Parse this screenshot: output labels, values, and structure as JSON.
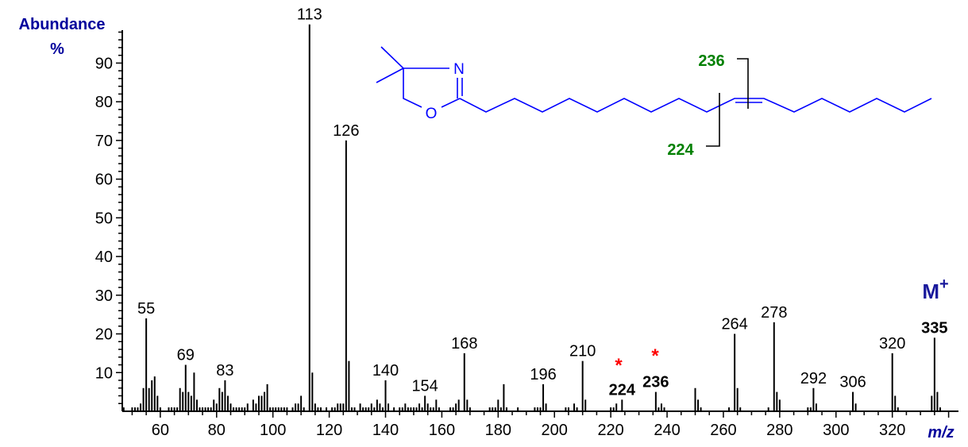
{
  "chart_data": {
    "type": "bar",
    "xlabel": "m/z",
    "ylabel": "Abundance",
    "ylabel_unit": "%",
    "xlim": [
      46.5,
      343.5
    ],
    "ylim": [
      0,
      98.5
    ],
    "x_tick_labels": [
      "60",
      "80",
      "100",
      "120",
      "140",
      "160",
      "180",
      "200",
      "220",
      "240",
      "260",
      "280",
      "300",
      "320"
    ],
    "y_tick_labels": [
      "10",
      "20",
      "30",
      "40",
      "50",
      "60",
      "70",
      "80",
      "90"
    ],
    "grid": false,
    "peaks": [
      [
        47,
        1
      ],
      [
        50,
        1
      ],
      [
        51,
        1
      ],
      [
        52,
        1
      ],
      [
        53,
        2
      ],
      [
        54,
        6
      ],
      [
        55,
        24
      ],
      [
        56,
        6
      ],
      [
        57,
        8
      ],
      [
        58,
        9
      ],
      [
        59,
        4
      ],
      [
        60,
        1
      ],
      [
        63,
        1
      ],
      [
        64,
        1
      ],
      [
        65,
        1
      ],
      [
        66,
        1
      ],
      [
        67,
        6
      ],
      [
        68,
        5
      ],
      [
        69,
        12
      ],
      [
        70,
        5
      ],
      [
        71,
        4
      ],
      [
        72,
        10
      ],
      [
        73,
        3
      ],
      [
        74,
        1
      ],
      [
        75,
        1
      ],
      [
        76,
        1
      ],
      [
        77,
        1
      ],
      [
        78,
        1
      ],
      [
        79,
        3
      ],
      [
        80,
        2
      ],
      [
        81,
        6
      ],
      [
        82,
        5
      ],
      [
        83,
        8
      ],
      [
        84,
        4
      ],
      [
        85,
        2
      ],
      [
        86,
        1
      ],
      [
        87,
        1
      ],
      [
        88,
        1
      ],
      [
        89,
        1
      ],
      [
        90,
        1
      ],
      [
        91,
        2
      ],
      [
        93,
        3
      ],
      [
        94,
        2
      ],
      [
        95,
        4
      ],
      [
        96,
        4
      ],
      [
        97,
        5
      ],
      [
        98,
        7
      ],
      [
        99,
        1
      ],
      [
        100,
        1
      ],
      [
        101,
        1
      ],
      [
        102,
        1
      ],
      [
        103,
        1
      ],
      [
        104,
        1
      ],
      [
        105,
        1
      ],
      [
        107,
        1
      ],
      [
        108,
        2
      ],
      [
        109,
        2
      ],
      [
        110,
        4
      ],
      [
        111,
        1
      ],
      [
        113,
        100
      ],
      [
        114,
        10
      ],
      [
        115,
        2
      ],
      [
        116,
        1
      ],
      [
        117,
        1
      ],
      [
        119,
        1
      ],
      [
        121,
        1
      ],
      [
        122,
        1
      ],
      [
        123,
        2
      ],
      [
        124,
        2
      ],
      [
        125,
        2
      ],
      [
        126,
        70
      ],
      [
        127,
        13
      ],
      [
        128,
        1
      ],
      [
        129,
        1
      ],
      [
        131,
        2
      ],
      [
        132,
        1
      ],
      [
        133,
        1
      ],
      [
        134,
        1
      ],
      [
        135,
        2
      ],
      [
        136,
        1
      ],
      [
        137,
        3
      ],
      [
        138,
        2
      ],
      [
        139,
        1
      ],
      [
        140,
        8
      ],
      [
        141,
        2
      ],
      [
        143,
        1
      ],
      [
        145,
        1
      ],
      [
        146,
        1
      ],
      [
        147,
        2
      ],
      [
        148,
        1
      ],
      [
        149,
        1
      ],
      [
        150,
        1
      ],
      [
        151,
        1
      ],
      [
        152,
        2
      ],
      [
        153,
        1
      ],
      [
        154,
        4
      ],
      [
        155,
        2
      ],
      [
        156,
        1
      ],
      [
        157,
        1
      ],
      [
        158,
        3
      ],
      [
        159,
        1
      ],
      [
        163,
        1
      ],
      [
        164,
        1
      ],
      [
        165,
        2
      ],
      [
        166,
        3
      ],
      [
        168,
        15
      ],
      [
        169,
        3
      ],
      [
        170,
        1
      ],
      [
        177,
        1
      ],
      [
        178,
        1
      ],
      [
        179,
        1
      ],
      [
        180,
        3
      ],
      [
        181,
        1
      ],
      [
        182,
        7
      ],
      [
        183,
        1
      ],
      [
        187,
        1
      ],
      [
        193,
        1
      ],
      [
        194,
        1
      ],
      [
        195,
        1
      ],
      [
        196,
        7
      ],
      [
        197,
        2
      ],
      [
        204,
        1
      ],
      [
        205,
        1
      ],
      [
        207,
        2
      ],
      [
        208,
        1
      ],
      [
        210,
        13
      ],
      [
        211,
        3
      ],
      [
        220,
        1
      ],
      [
        221,
        1
      ],
      [
        222,
        2
      ],
      [
        224,
        3
      ],
      [
        236,
        5
      ],
      [
        237,
        1
      ],
      [
        238,
        2
      ],
      [
        239,
        1
      ],
      [
        250,
        6
      ],
      [
        251,
        3
      ],
      [
        252,
        1
      ],
      [
        262,
        1
      ],
      [
        264,
        20
      ],
      [
        265,
        6
      ],
      [
        266,
        1
      ],
      [
        276,
        1
      ],
      [
        278,
        23
      ],
      [
        279,
        5
      ],
      [
        280,
        3
      ],
      [
        290,
        1
      ],
      [
        291,
        1
      ],
      [
        292,
        6
      ],
      [
        293,
        2
      ],
      [
        306,
        5
      ],
      [
        307,
        2
      ],
      [
        320,
        15
      ],
      [
        321,
        4
      ],
      [
        322,
        1
      ],
      [
        334,
        4
      ],
      [
        335,
        19
      ],
      [
        336,
        5
      ],
      [
        337,
        1
      ]
    ],
    "peak_labels": [
      {
        "mz": 55,
        "text": "55",
        "style": "normal"
      },
      {
        "mz": 69,
        "text": "69",
        "style": "normal"
      },
      {
        "mz": 83,
        "text": "83",
        "style": "normal"
      },
      {
        "mz": 113,
        "text": "113",
        "style": "normal"
      },
      {
        "mz": 126,
        "text": "126",
        "style": "normal"
      },
      {
        "mz": 140,
        "text": "140",
        "style": "normal"
      },
      {
        "mz": 154,
        "text": "154",
        "style": "normal"
      },
      {
        "mz": 168,
        "text": "168",
        "style": "normal"
      },
      {
        "mz": 196,
        "text": "196",
        "style": "normal"
      },
      {
        "mz": 210,
        "text": "210",
        "style": "normal"
      },
      {
        "mz": 224,
        "text": "224",
        "style": "fragment"
      },
      {
        "mz": 236,
        "text": "236",
        "style": "fragment"
      },
      {
        "mz": 264,
        "text": "264",
        "style": "normal"
      },
      {
        "mz": 278,
        "text": "278",
        "style": "normal"
      },
      {
        "mz": 292,
        "text": "292",
        "style": "normal"
      },
      {
        "mz": 306,
        "text": "306",
        "style": "normal"
      },
      {
        "mz": 320,
        "text": "320",
        "style": "normal"
      },
      {
        "mz": 335,
        "text": "335",
        "style": "molecular"
      }
    ],
    "annotations": {
      "molecular_ion": "M",
      "molecular_ion_charge": "+",
      "asterisk": "*",
      "structure_fragment_labels": [
        "236",
        "224"
      ]
    },
    "colors": {
      "bars": "#000000",
      "axis_title": "#00009c",
      "fragment": "#008000",
      "molecular": "#1a1a9c",
      "asterisk": "#ff0000",
      "structure": "#0000ff"
    }
  }
}
